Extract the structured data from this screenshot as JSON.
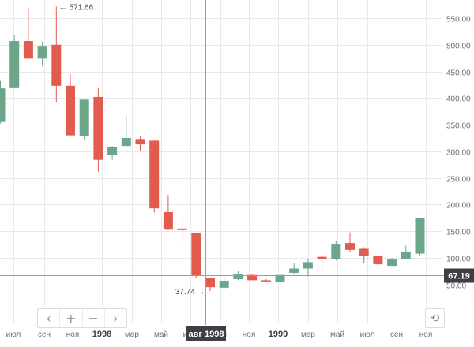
{
  "chart_data": {
    "type": "candlestick",
    "y_axis": {
      "min": 25,
      "max": 575,
      "ticks": [
        50,
        100,
        150,
        200,
        250,
        300,
        350,
        400,
        450,
        500,
        550
      ],
      "tick_labels": [
        "50.00",
        "100.00",
        "150.00",
        "200.00",
        "250.00",
        "300.00",
        "350.00",
        "400.00",
        "450.00",
        "500.00",
        "550.00"
      ]
    },
    "x_axis_labels": [
      "июл",
      "сен",
      "ноя",
      "1998",
      "мар",
      "май",
      "июл",
      "сен",
      "ноя",
      "1999",
      "мар",
      "май",
      "июл",
      "сен",
      "ноя"
    ],
    "x_axis_bold_labels": [
      "1998",
      "1999"
    ],
    "crosshair_label": "авг 1998",
    "crosshair_price": "67.19",
    "annotations": {
      "high_label": "571.66",
      "low_label": "37.74"
    },
    "candles": [
      {
        "open": 355,
        "close": 418,
        "high": 432,
        "low": 352
      },
      {
        "open": 420,
        "close": 507,
        "high": 518,
        "low": 420
      },
      {
        "open": 507,
        "close": 474,
        "high": 570,
        "low": 474
      },
      {
        "open": 474,
        "close": 498,
        "high": 506,
        "low": 460
      },
      {
        "open": 500,
        "close": 423,
        "high": 571.66,
        "low": 393
      },
      {
        "open": 423,
        "close": 330,
        "high": 445,
        "low": 330
      },
      {
        "open": 328,
        "close": 397,
        "high": 398,
        "low": 322
      },
      {
        "open": 402,
        "close": 284,
        "high": 420,
        "low": 262
      },
      {
        "open": 293,
        "close": 308,
        "high": 310,
        "low": 284
      },
      {
        "open": 310,
        "close": 325,
        "high": 367,
        "low": 308
      },
      {
        "open": 323,
        "close": 313,
        "high": 328,
        "low": 301
      },
      {
        "open": 320,
        "close": 193,
        "high": 320,
        "low": 185
      },
      {
        "open": 186,
        "close": 153,
        "high": 218,
        "low": 152
      },
      {
        "open": 155,
        "close": 152,
        "high": 171,
        "low": 132
      },
      {
        "open": 147,
        "close": 66,
        "high": 147,
        "low": 62
      },
      {
        "open": 62,
        "close": 45,
        "high": 63,
        "low": 37.74
      },
      {
        "open": 44,
        "close": 57,
        "high": 63,
        "low": 40
      },
      {
        "open": 60,
        "close": 70,
        "high": 75,
        "low": 58
      },
      {
        "open": 68,
        "close": 58,
        "high": 70,
        "low": 58
      },
      {
        "open": 58,
        "close": 56,
        "high": 60,
        "low": 55
      },
      {
        "open": 55,
        "close": 68,
        "high": 80,
        "low": 52
      },
      {
        "open": 72,
        "close": 80,
        "high": 90,
        "low": 70
      },
      {
        "open": 80,
        "close": 92,
        "high": 98,
        "low": 65
      },
      {
        "open": 102,
        "close": 97,
        "high": 110,
        "low": 78
      },
      {
        "open": 98,
        "close": 125,
        "high": 132,
        "low": 95
      },
      {
        "open": 128,
        "close": 115,
        "high": 148,
        "low": 112
      },
      {
        "open": 117,
        "close": 103,
        "high": 120,
        "low": 90
      },
      {
        "open": 103,
        "close": 88,
        "high": 106,
        "low": 78
      },
      {
        "open": 85,
        "close": 97,
        "high": 100,
        "low": 85
      },
      {
        "open": 98,
        "close": 112,
        "high": 123,
        "low": 97
      },
      {
        "open": 108,
        "close": 175,
        "high": 175,
        "low": 105
      }
    ],
    "colors": {
      "up": "#6ba58a",
      "down": "#e35b4e",
      "grid": "#e6eaee",
      "axis_text": "#6b6f74",
      "crosshair_label_bg": "#3d3f44"
    }
  },
  "controls": {
    "scroll_left": "‹",
    "zoom_in": "+",
    "zoom_out": "−",
    "scroll_right": "›",
    "reset": "⟲"
  }
}
